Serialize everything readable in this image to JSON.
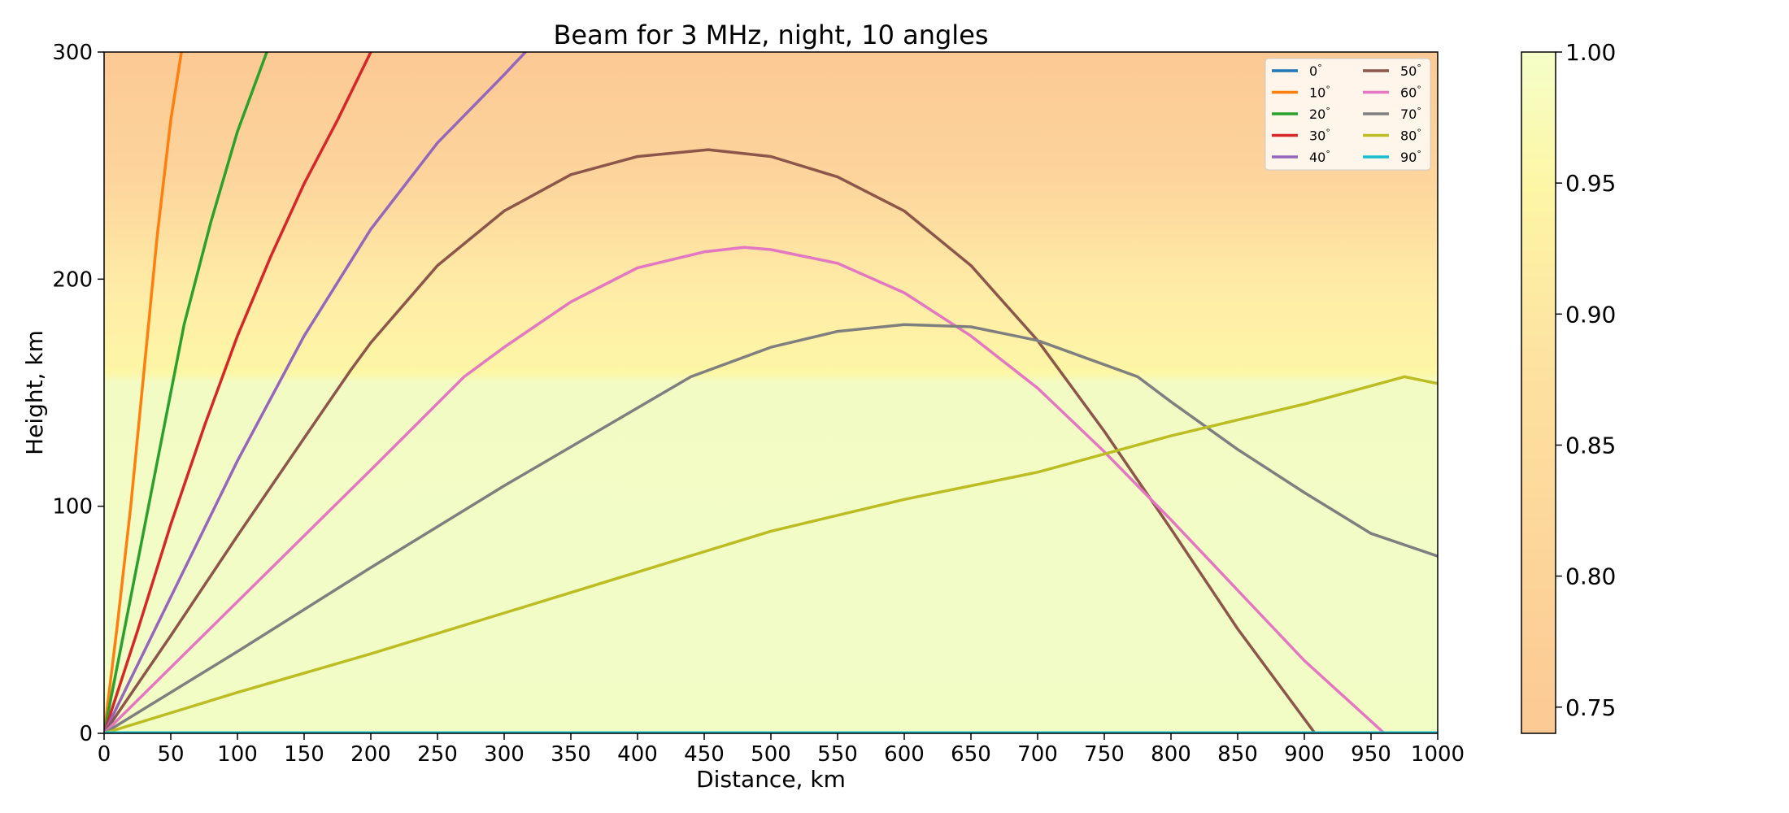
{
  "chart_data": {
    "type": "line",
    "title": "Beam for 3 MHz, night, 10 angles",
    "xlabel": "Distance, km",
    "ylabel": "Height, km",
    "xlim": [
      0,
      1000
    ],
    "ylim": [
      0,
      300
    ],
    "xticks": [
      0,
      50,
      100,
      150,
      200,
      250,
      300,
      350,
      400,
      450,
      500,
      550,
      600,
      650,
      700,
      750,
      800,
      850,
      900,
      950,
      1000
    ],
    "yticks": [
      0,
      100,
      200,
      300
    ],
    "grid": false,
    "legend": {
      "placement": "top-right",
      "columns": 2
    },
    "background_gradient": {
      "description_units": "relative value by height (km)",
      "stops": [
        {
          "height": 0,
          "value": 1.0
        },
        {
          "height": 155,
          "value": 1.0
        },
        {
          "height": 190,
          "value": 0.93
        },
        {
          "height": 230,
          "value": 0.85
        },
        {
          "height": 300,
          "value": 0.78
        }
      ]
    },
    "colorbar": {
      "ticks": [
        "1.00",
        "0.95",
        "0.90",
        "0.85",
        "0.80",
        "0.75"
      ],
      "tick_values": [
        1.0,
        0.95,
        0.9,
        0.85,
        0.8,
        0.75
      ],
      "range": [
        0.74,
        1.0
      ]
    },
    "series": [
      {
        "name": "0$^\\circ$",
        "label": "0",
        "color": "#1f77b4",
        "x": [
          0,
          1000
        ],
        "y": [
          0,
          0
        ]
      },
      {
        "name": "10$^\\circ$",
        "label": "10",
        "color": "#ff7f0e",
        "x": [
          0,
          10,
          20,
          30,
          40,
          50,
          58
        ],
        "y": [
          0,
          48,
          100,
          160,
          220,
          270,
          300
        ]
      },
      {
        "name": "20$^\\circ$",
        "label": "20",
        "color": "#2ca02c",
        "x": [
          0,
          20,
          40,
          60,
          80,
          100,
          122
        ],
        "y": [
          0,
          60,
          120,
          180,
          225,
          265,
          300
        ]
      },
      {
        "name": "30$^\\circ$",
        "label": "30",
        "color": "#d62728",
        "x": [
          0,
          25,
          50,
          75,
          100,
          125,
          150,
          175,
          200
        ],
        "y": [
          0,
          45,
          92,
          135,
          175,
          210,
          242,
          270,
          300
        ]
      },
      {
        "name": "40$^\\circ$",
        "label": "40",
        "color": "#9467bd",
        "x": [
          0,
          50,
          100,
          150,
          200,
          250,
          300,
          316
        ],
        "y": [
          0,
          60,
          120,
          175,
          222,
          260,
          290,
          300
        ]
      },
      {
        "name": "50$^\\circ$",
        "label": "50",
        "color": "#8c564b",
        "x": [
          0,
          50,
          100,
          150,
          185,
          200,
          250,
          300,
          350,
          400,
          453,
          500,
          550,
          600,
          650,
          700,
          750,
          800,
          850,
          908
        ],
        "y": [
          0,
          43,
          87,
          130,
          160,
          172,
          206,
          230,
          246,
          254,
          257,
          254,
          245,
          230,
          206,
          173,
          133,
          90,
          46,
          0
        ]
      },
      {
        "name": "60$^\\circ$",
        "label": "60",
        "color": "#e377c2",
        "x": [
          0,
          50,
          100,
          150,
          200,
          270,
          300,
          350,
          400,
          450,
          480,
          500,
          550,
          600,
          650,
          700,
          750,
          800,
          850,
          900,
          960
        ],
        "y": [
          0,
          29,
          58,
          87,
          116,
          157,
          170,
          190,
          205,
          212,
          214,
          213,
          207,
          194,
          175,
          152,
          124,
          94,
          63,
          32,
          0
        ]
      },
      {
        "name": "70$^\\circ$",
        "label": "70",
        "color": "#7f7f7f",
        "x": [
          0,
          100,
          200,
          300,
          440,
          500,
          550,
          600,
          650,
          700,
          775,
          800,
          850,
          900,
          950,
          1000
        ],
        "y": [
          0,
          36,
          73,
          109,
          157,
          170,
          177,
          180,
          179,
          173,
          157,
          146,
          125,
          106,
          88,
          78
        ]
      },
      {
        "name": "80$^\\circ$",
        "label": "80",
        "color": "#bcbd22",
        "x": [
          0,
          100,
          200,
          300,
          400,
          500,
          600,
          700,
          800,
          900,
          975,
          1000
        ],
        "y": [
          0,
          18,
          35,
          53,
          71,
          89,
          103,
          115,
          131,
          145,
          157,
          154
        ]
      },
      {
        "name": "90$^\\circ$",
        "label": "90",
        "color": "#17becf",
        "x": [
          0,
          1000
        ],
        "y": [
          0.3,
          0.3
        ]
      }
    ]
  }
}
